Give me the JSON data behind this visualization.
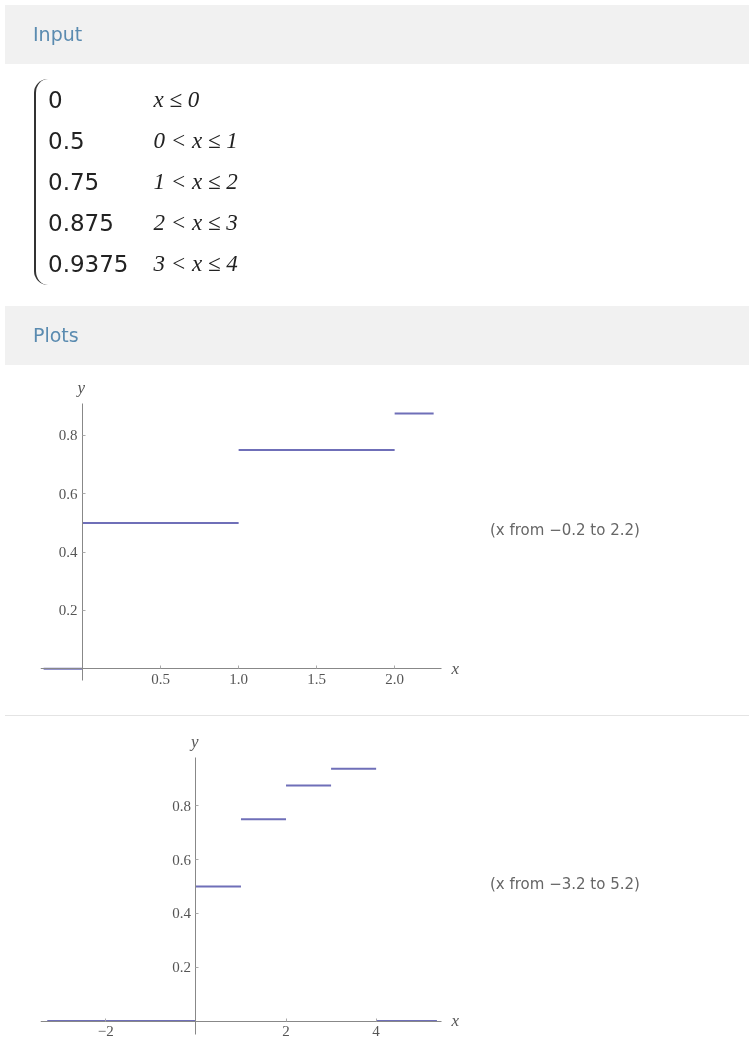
{
  "chart_data": [
    {
      "type": "other",
      "title": "Input",
      "annotations": [
        "0",
        "x ≤ 0",
        "0.5",
        "0 < x ≤ 1",
        "0.75",
        "1 < x ≤ 2",
        "0.875",
        "2 < x ≤ 3",
        "0.9375",
        "3 < x ≤ 4"
      ]
    },
    {
      "type": "line",
      "title": "Plots",
      "xlabel": "x",
      "ylabel": "y",
      "annotations": [
        "(x from −0.2 to 2.2)"
      ],
      "xlim": [
        -0.27,
        2.3
      ],
      "ylim": [
        -0.04,
        0.91
      ],
      "xticks": [
        0.5,
        {
          "value": 1,
          "label": "1.0"
        },
        1.5,
        {
          "value": 2,
          "label": "2.0"
        }
      ],
      "yticks": [
        0.2,
        0.4,
        0.6,
        0.8
      ],
      "grid": false,
      "series": [
        {
          "color": "#6f6fb8",
          "x": [
            -0.25,
            0
          ],
          "values": [
            0,
            0
          ]
        },
        {
          "color": "#6f6fb8",
          "x": [
            0,
            1
          ],
          "values": [
            0.5,
            0.5
          ]
        },
        {
          "color": "#6f6fb8",
          "x": [
            1,
            2
          ],
          "values": [
            0.75,
            0.75
          ]
        },
        {
          "color": "#6f6fb8",
          "x": [
            2,
            2.25
          ],
          "values": [
            0.875,
            0.875
          ]
        }
      ]
    },
    {
      "type": "line",
      "xlabel": "x",
      "ylabel": "y",
      "annotations": [
        "(x from −3.2 to 5.2)"
      ],
      "xlim": [
        -3.45,
        5.45
      ],
      "ylim": [
        -0.05,
        0.98
      ],
      "xticks": [
        {
          "value": -2,
          "label": "−2"
        },
        2,
        4
      ],
      "yticks": [
        0.2,
        0.4,
        0.6,
        0.8
      ],
      "grid": false,
      "series": [
        {
          "color": "#6f6fb8",
          "x": [
            -3.3,
            0
          ],
          "values": [
            0,
            0
          ]
        },
        {
          "color": "#6f6fb8",
          "x": [
            0,
            1
          ],
          "values": [
            0.5,
            0.5
          ]
        },
        {
          "color": "#6f6fb8",
          "x": [
            1,
            2
          ],
          "values": [
            0.75,
            0.75
          ]
        },
        {
          "color": "#6f6fb8",
          "x": [
            2,
            3
          ],
          "values": [
            0.875,
            0.875
          ]
        },
        {
          "color": "#6f6fb8",
          "x": [
            3,
            4
          ],
          "values": [
            0.9375,
            0.9375
          ]
        },
        {
          "color": "#6f6fb8",
          "x": [
            4,
            5.35
          ],
          "values": [
            0,
            0
          ]
        }
      ]
    }
  ]
}
